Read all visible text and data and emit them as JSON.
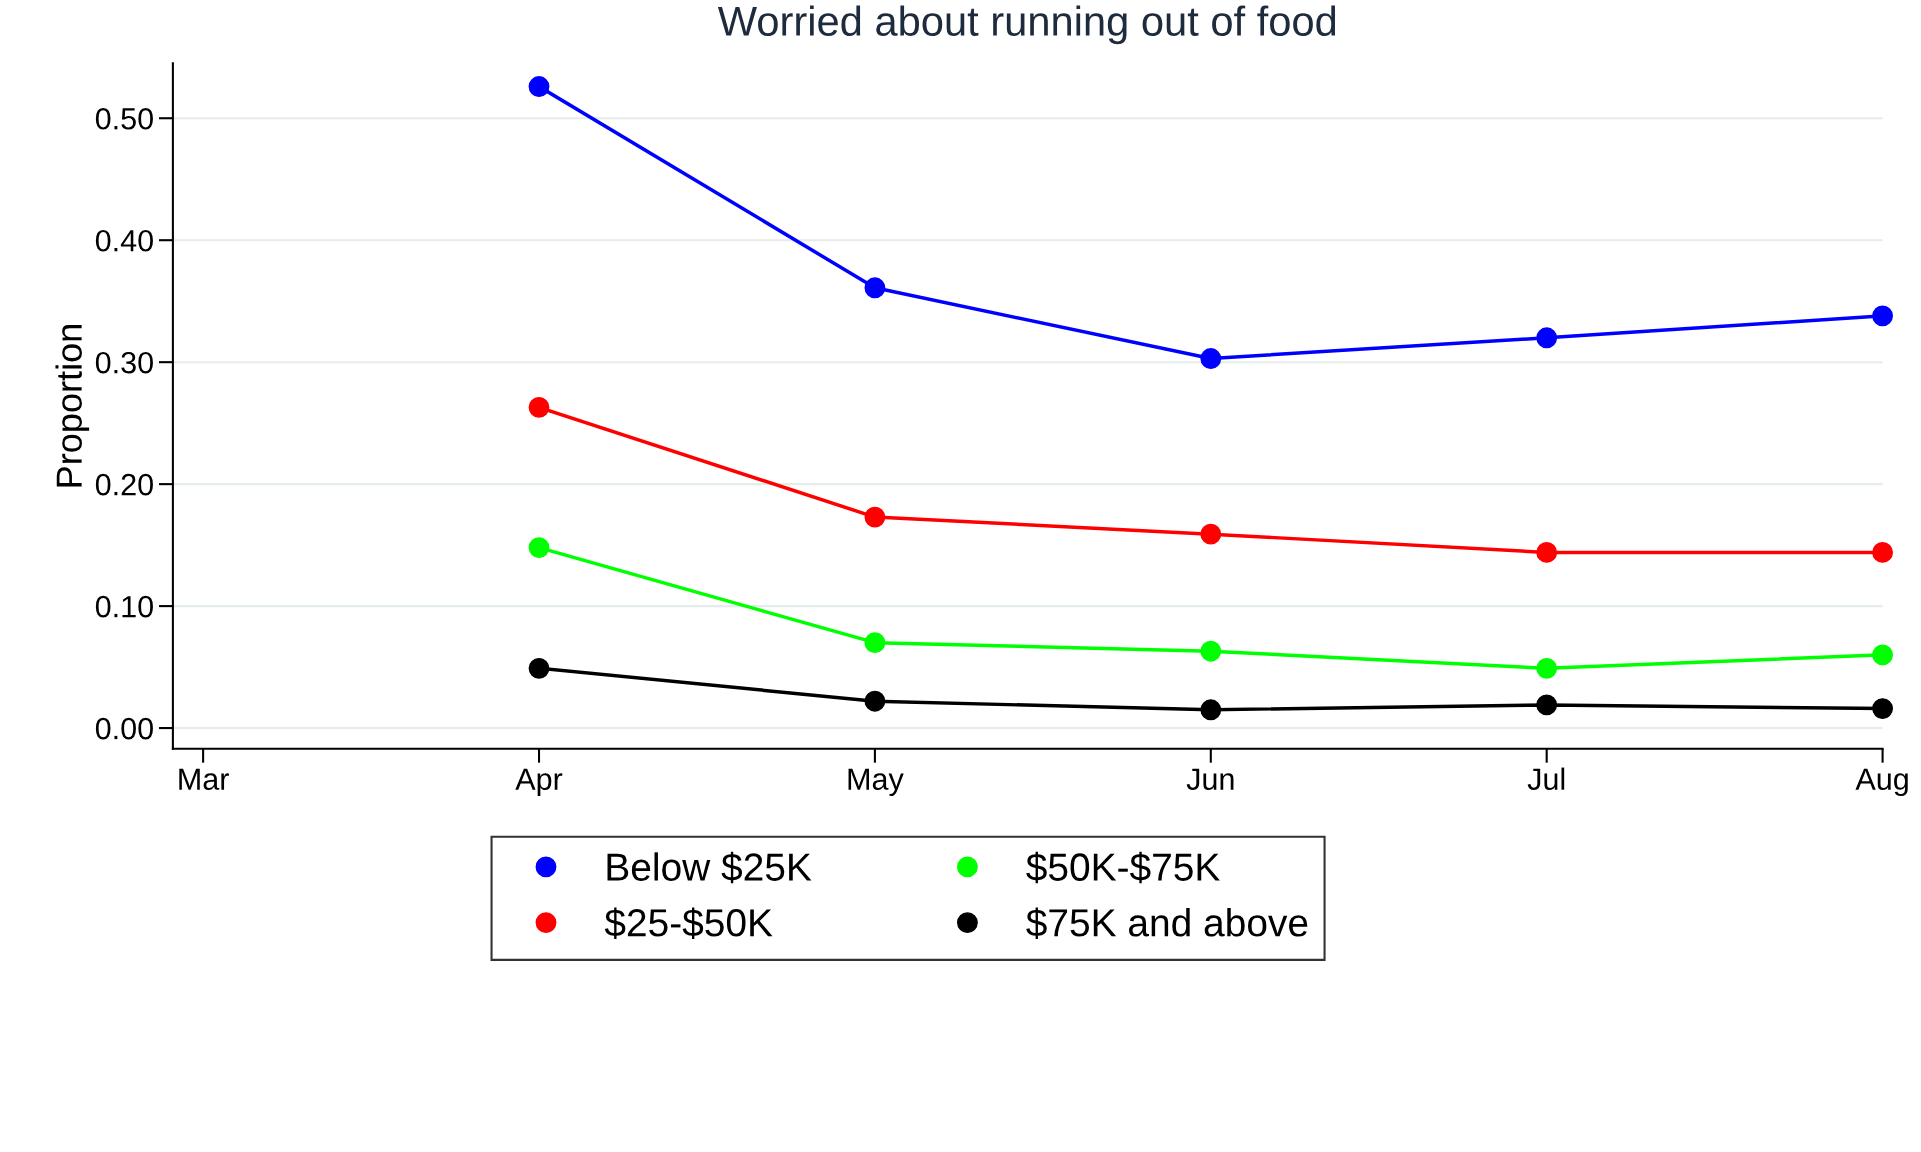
{
  "chart_data": {
    "type": "line",
    "title": "Worried about running out of food",
    "ylabel": "Proportion",
    "categories": [
      "Mar",
      "Apr",
      "May",
      "Jun",
      "Jul",
      "Aug"
    ],
    "series": [
      {
        "name": "Below $25K",
        "color": "#0000ff",
        "values": [
          null,
          0.526,
          0.361,
          0.303,
          0.32,
          0.338
        ]
      },
      {
        "name": "$25-$50K",
        "color": "#ff0000",
        "values": [
          null,
          0.263,
          0.173,
          0.159,
          0.144,
          0.144
        ]
      },
      {
        "name": "$50K-$75K",
        "color": "#00ff00",
        "values": [
          null,
          0.148,
          0.07,
          0.063,
          0.049,
          0.06
        ]
      },
      {
        "name": "$75K and above",
        "color": "#000000",
        "values": [
          null,
          0.049,
          0.022,
          0.015,
          0.019,
          0.016
        ]
      }
    ],
    "ylim": [
      -0.017,
      0.545
    ],
    "yticks": [
      {
        "value": 0,
        "label": "0.00"
      },
      {
        "value": 0.1,
        "label": "0.10"
      },
      {
        "value": 0.2,
        "label": "0.20"
      },
      {
        "value": 0.3,
        "label": "0.30"
      },
      {
        "value": 0.4,
        "label": "0.40"
      },
      {
        "value": 0.5,
        "label": "0.50"
      }
    ],
    "grid": "y",
    "legend": "bottom",
    "marker": "circle",
    "line_style": "solid"
  }
}
